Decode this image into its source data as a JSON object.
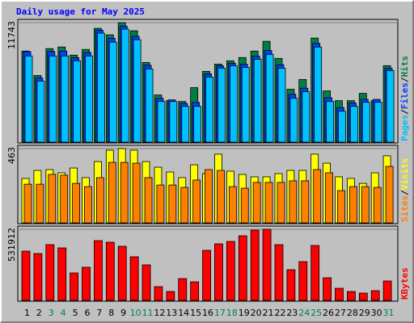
{
  "title": "Daily usage for May 2025",
  "chart_data": [
    {
      "type": "bar",
      "ylim": [
        0,
        11743
      ],
      "yticks": [
        11743
      ],
      "legend_separator": "/",
      "legend_position": "right",
      "series": [
        {
          "name": "Hits",
          "color": "#008040",
          "values": [
            8947,
            6550,
            9186,
            9346,
            8547,
            9106,
            11183,
            10544,
            11743,
            10944,
            7828,
            4633,
            4074,
            3994,
            5352,
            6950,
            7668,
            7988,
            8308,
            8947,
            9905,
            8228,
            5192,
            6151,
            10225,
            5032,
            4074,
            4074,
            4793,
            4074,
            7509
          ]
        },
        {
          "name": "Files",
          "color": "#0040ff",
          "values": [
            8890,
            6300,
            8900,
            8950,
            8300,
            8800,
            11000,
            10200,
            11400,
            10400,
            7550,
            4300,
            4150,
            3800,
            3900,
            6700,
            7500,
            7750,
            7650,
            8450,
            9000,
            7600,
            4700,
            5300,
            9700,
            4350,
            3400,
            3850,
            4200,
            4200,
            7250
          ]
        },
        {
          "name": "Pages",
          "color": "#00c0ff",
          "values": [
            8467,
            5991,
            8467,
            8467,
            7988,
            8467,
            10704,
            9825,
            11103,
            10065,
            7189,
            3994,
            3994,
            3515,
            3515,
            6390,
            7269,
            7509,
            7349,
            8148,
            8627,
            7269,
            4314,
            4953,
            9346,
            3994,
            3035,
            3515,
            3914,
            3914,
            7030
          ]
        }
      ]
    },
    {
      "type": "bar",
      "ylim": [
        0,
        463
      ],
      "yticks": [
        463
      ],
      "legend_separator": "/",
      "legend_position": "right",
      "series": [
        {
          "name": "Visits",
          "color": "#ffff00",
          "values": [
            277,
            327,
            332,
            312,
            342,
            282,
            382,
            453,
            463,
            453,
            382,
            347,
            317,
            282,
            362,
            307,
            428,
            322,
            302,
            287,
            287,
            307,
            327,
            327,
            428,
            372,
            287,
            277,
            246,
            312,
            418
          ]
        },
        {
          "name": "Sites",
          "color": "#ff8000",
          "values": [
            241,
            241,
            302,
            297,
            246,
            226,
            282,
            377,
            377,
            372,
            282,
            236,
            236,
            221,
            267,
            332,
            327,
            226,
            216,
            252,
            252,
            252,
            262,
            262,
            332,
            312,
            201,
            226,
            226,
            221,
            352
          ]
        }
      ]
    },
    {
      "type": "bar",
      "ylim": [
        0,
        531912
      ],
      "yticks": [
        531912
      ],
      "legend_position": "right",
      "categories": [
        "1",
        "2",
        "3",
        "4",
        "5",
        "6",
        "7",
        "8",
        "9",
        "10",
        "11",
        "12",
        "13",
        "14",
        "15",
        "16",
        "17",
        "18",
        "19",
        "20",
        "21",
        "22",
        "23",
        "24",
        "25",
        "26",
        "27",
        "28",
        "29",
        "30",
        "31"
      ],
      "category_colors": [
        "#000000",
        "#000000",
        "#00805c",
        "#00805c",
        "#000000",
        "#000000",
        "#000000",
        "#000000",
        "#000000",
        "#00805c",
        "#00805c",
        "#000000",
        "#000000",
        "#000000",
        "#000000",
        "#000000",
        "#00805c",
        "#00805c",
        "#000000",
        "#000000",
        "#000000",
        "#000000",
        "#000000",
        "#00805c",
        "#00805c",
        "#000000",
        "#000000",
        "#000000",
        "#000000",
        "#000000",
        "#00805c"
      ],
      "series": [
        {
          "name": "KBytes",
          "color": "#ff0000",
          "values": [
            368684,
            350552,
            417036,
            392860,
            205496,
            247804,
            447256,
            435168,
            404948,
            326376,
            265936,
            102748,
            66484,
            163188,
            139012,
            374728,
            423080,
            441212,
            483520,
            525828,
            531912,
            417036,
            229672,
            290112,
            410992,
            169232,
            90660,
            66484,
            54396,
            72528,
            145056
          ]
        }
      ]
    }
  ]
}
